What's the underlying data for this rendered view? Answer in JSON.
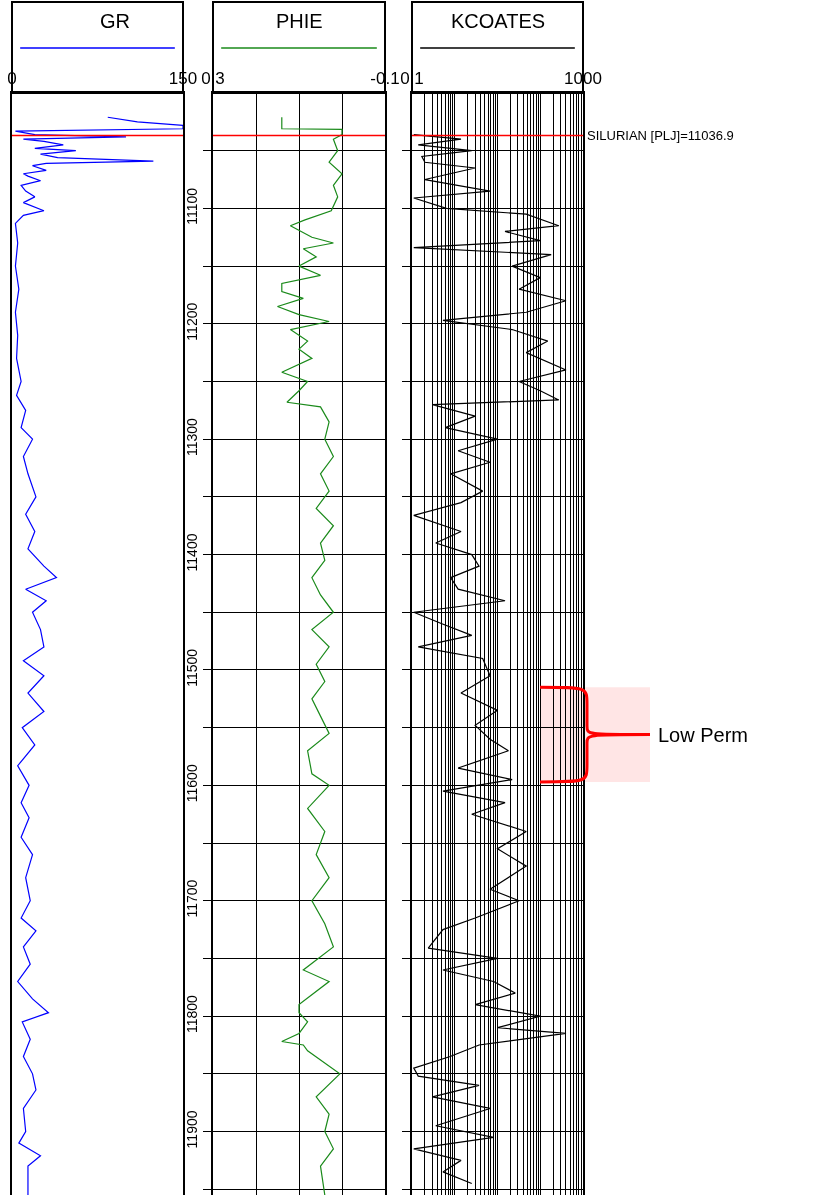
{
  "chart_data": [
    {
      "type": "line",
      "orientation": "horizontal",
      "legend": "top",
      "xlim": [
        0,
        150
      ],
      "xticks": [
        0,
        150
      ],
      "ylim": [
        11955,
        11000
      ],
      "tick_labels": "x",
      "series": [
        {
          "name": "GR",
          "color": "#0000ff",
          "x": [
            11021,
            11025,
            11028,
            11031,
            11033,
            11036,
            11038,
            11040,
            11042,
            11045,
            11048,
            11050,
            11053,
            11056,
            11059,
            11061,
            11063,
            11067,
            11070,
            11072,
            11076,
            11080,
            11085,
            11090,
            11095,
            11102,
            11106,
            11113,
            11130,
            11150,
            11170,
            11190,
            11210,
            11230,
            11250,
            11262,
            11275,
            11290,
            11300,
            11315,
            11330,
            11350,
            11365,
            11380,
            11395,
            11410,
            11420,
            11430,
            11440,
            11450,
            11465,
            11480,
            11492,
            11505,
            11520,
            11536,
            11550,
            11565,
            11583,
            11600,
            11615,
            11628,
            11645,
            11660,
            11680,
            11700,
            11715,
            11726,
            11740,
            11755,
            11770,
            11785,
            11797,
            11805,
            11820,
            11835,
            11850,
            11864,
            11880,
            11900,
            11910,
            11921,
            11930,
            11955
          ],
          "values": [
            84,
            110,
            150,
            150,
            3,
            20,
            100,
            10,
            28,
            45,
            20,
            56,
            25,
            40,
            124,
            30,
            18,
            30,
            10,
            14,
            25,
            8,
            12,
            20,
            10,
            28,
            10,
            3,
            5,
            3,
            6,
            3,
            5,
            4,
            8,
            4,
            12,
            8,
            18,
            10,
            14,
            21,
            12,
            20,
            14,
            28,
            39,
            12,
            30,
            18,
            25,
            28,
            10,
            28,
            14,
            28,
            9,
            20,
            5,
            15,
            8,
            15,
            8,
            18,
            12,
            16,
            8,
            21,
            10,
            16,
            5,
            18,
            32,
            9,
            16,
            10,
            18,
            21,
            10,
            12,
            6,
            25,
            14,
            14
          ]
        }
      ],
      "ref_lines": [
        {
          "axis": "y",
          "value": 11036.9,
          "color": "#ff0000"
        }
      ]
    },
    {
      "type": "line",
      "orientation": "horizontal",
      "legend": "top",
      "grid": true,
      "xlim": [
        0.3,
        -0.1
      ],
      "xticks": [
        0.3,
        {
          "value": 0.2,
          "label": null
        },
        {
          "value": 0.1,
          "label": null
        },
        {
          "value": 0,
          "label": null
        },
        -0.1
      ],
      "ylim": [
        11955,
        11000
      ],
      "yticks": [
        {
          "value": 11050,
          "label": null
        },
        11100,
        {
          "value": 11150,
          "label": null
        },
        11200,
        {
          "value": 11250,
          "label": null
        },
        11300,
        {
          "value": 11350,
          "label": null
        },
        11400,
        {
          "value": 11450,
          "label": null
        },
        11500,
        {
          "value": 11550,
          "label": null
        },
        11600,
        {
          "value": 11650,
          "label": null
        },
        11700,
        {
          "value": 11750,
          "label": null
        },
        11800,
        {
          "value": 11850,
          "label": null
        },
        11900,
        {
          "value": 11950,
          "label": null
        }
      ],
      "series": [
        {
          "name": "PHIE",
          "color": "#1a8a1a",
          "x": [
            11021,
            11031,
            11031.5,
            11036,
            11040,
            11050,
            11060,
            11070,
            11080,
            11090,
            11102,
            11110,
            11115,
            11125,
            11130,
            11135,
            11142,
            11150,
            11158,
            11165,
            11172,
            11178,
            11185,
            11192,
            11198,
            11205,
            11215,
            11222,
            11230,
            11242,
            11250,
            11258,
            11268,
            11272,
            11285,
            11300,
            11315,
            11330,
            11345,
            11360,
            11375,
            11390,
            11405,
            11420,
            11435,
            11450,
            11465,
            11480,
            11495,
            11510,
            11525,
            11540,
            11555,
            11570,
            11590,
            11600,
            11620,
            11640,
            11660,
            11680,
            11700,
            11720,
            11740,
            11760,
            11770,
            11790,
            11797,
            11805,
            11815,
            11822,
            11825,
            11830,
            11850,
            11870,
            11885,
            11900,
            11915,
            11930,
            11955
          ],
          "values": [
            0.14,
            0.14,
            0.0,
            0.0,
            0.02,
            0.01,
            0.03,
            0.0,
            0.02,
            0.01,
            0.025,
            0.086,
            0.12,
            0.07,
            0.02,
            0.09,
            0.06,
            0.1,
            0.05,
            0.14,
            0.14,
            0.09,
            0.15,
            0.1,
            0.03,
            0.12,
            0.08,
            0.1,
            0.07,
            0.14,
            0.08,
            0.1,
            0.128,
            0.05,
            0.03,
            0.04,
            0.02,
            0.05,
            0.03,
            0.06,
            0.02,
            0.05,
            0.04,
            0.07,
            0.05,
            0.02,
            0.07,
            0.03,
            0.06,
            0.04,
            0.07,
            0.05,
            0.03,
            0.08,
            0.07,
            0.03,
            0.08,
            0.04,
            0.06,
            0.03,
            0.07,
            0.04,
            0.02,
            0.09,
            0.03,
            0.1,
            0.1,
            0.08,
            0.1,
            0.14,
            0.09,
            0.08,
            0.005,
            0.06,
            0.03,
            0.04,
            0.02,
            0.05,
            0.04
          ]
        }
      ],
      "ref_lines": [
        {
          "axis": "y",
          "value": 11036.9,
          "color": "#ff0000"
        }
      ]
    },
    {
      "type": "line",
      "orientation": "horizontal",
      "legend": "top",
      "grid": true,
      "log": "x",
      "xlim": [
        0.1,
        1000
      ],
      "tick_labels": "x",
      "ylim": [
        11955,
        11000
      ],
      "xticks": [
        0.1,
        {
          "value": 0.2,
          "label": null
        },
        {
          "value": 0.3,
          "label": null
        },
        {
          "value": 0.4,
          "label": null
        },
        {
          "value": 0.5,
          "label": null
        },
        {
          "value": 0.6,
          "label": null
        },
        {
          "value": 0.7,
          "label": null
        },
        {
          "value": 0.8,
          "label": null
        },
        {
          "value": 0.9,
          "label": null
        },
        {
          "value": 1,
          "label": null
        },
        {
          "value": 2,
          "label": null
        },
        {
          "value": 3,
          "label": null
        },
        {
          "value": 4,
          "label": null
        },
        {
          "value": 5,
          "label": null
        },
        {
          "value": 6,
          "label": null
        },
        {
          "value": 7,
          "label": null
        },
        {
          "value": 8,
          "label": null
        },
        {
          "value": 9,
          "label": null
        },
        {
          "value": 10,
          "label": null
        },
        {
          "value": 20,
          "label": null
        },
        {
          "value": 30,
          "label": null
        },
        {
          "value": 40,
          "label": null
        },
        {
          "value": 50,
          "label": null
        },
        {
          "value": 60,
          "label": null
        },
        {
          "value": 70,
          "label": null
        },
        {
          "value": 80,
          "label": null
        },
        {
          "value": 90,
          "label": null
        },
        {
          "value": 100,
          "label": null
        },
        {
          "value": 200,
          "label": null
        },
        {
          "value": 300,
          "label": null
        },
        {
          "value": 400,
          "label": null
        },
        {
          "value": 500,
          "label": null
        },
        {
          "value": 600,
          "label": null
        },
        {
          "value": 700,
          "label": null
        },
        {
          "value": 800,
          "label": null
        },
        {
          "value": 900,
          "label": null
        },
        1000
      ],
      "yticks": [
        {
          "value": 11050,
          "label": null
        },
        {
          "value": 11100,
          "label": null
        },
        {
          "value": 11150,
          "label": null
        },
        {
          "value": 11200,
          "label": null
        },
        {
          "value": 11250,
          "label": null
        },
        {
          "value": 11300,
          "label": null
        },
        {
          "value": 11350,
          "label": null
        },
        {
          "value": 11400,
          "label": null
        },
        {
          "value": 11450,
          "label": null
        },
        {
          "value": 11500,
          "label": null
        },
        {
          "value": 11550,
          "label": null
        },
        {
          "value": 11600,
          "label": null
        },
        {
          "value": 11650,
          "label": null
        },
        {
          "value": 11700,
          "label": null
        },
        {
          "value": 11750,
          "label": null
        },
        {
          "value": 11800,
          "label": null
        },
        {
          "value": 11850,
          "label": null
        },
        {
          "value": 11900,
          "label": null
        },
        {
          "value": 11950,
          "label": null
        }
      ],
      "series": [
        {
          "name": "KCOATES",
          "color": "#000000",
          "x": [
            11036,
            11040,
            11045,
            11050,
            11055,
            11060,
            11065,
            11075,
            11085,
            11091,
            11100,
            11105,
            11115,
            11120,
            11128,
            11134,
            11140,
            11150,
            11160,
            11170,
            11180,
            11190,
            11197,
            11205,
            11215,
            11225,
            11240,
            11250,
            11258,
            11266,
            11270,
            11280,
            11290,
            11300,
            11310,
            11320,
            11330,
            11345,
            11355,
            11366,
            11380,
            11390,
            11400,
            11410,
            11420,
            11430,
            11440,
            11450,
            11460,
            11470,
            11480,
            11490,
            11505,
            11520,
            11535,
            11548,
            11560,
            11570,
            11585,
            11595,
            11605,
            11615,
            11625,
            11640,
            11655,
            11670,
            11690,
            11700,
            11715,
            11725,
            11741,
            11750,
            11760,
            11770,
            11780,
            11790,
            11800,
            11810,
            11815,
            11825,
            11835,
            11845,
            11852,
            11860,
            11870,
            11880,
            11895,
            11905,
            11915,
            11925,
            11935,
            11945
          ],
          "values": [
            0.11,
            1.4,
            0.14,
            2.5,
            0.17,
            0.2,
            3,
            0.2,
            6.7,
            0.11,
            0.64,
            47,
            270,
            15,
            100,
            0.11,
            180,
            22,
            100,
            32,
            400,
            47,
            0.53,
            22,
            150,
            47,
            400,
            32,
            100,
            270,
            0.3,
            3,
            0.6,
            10,
            1.2,
            6.7,
            0.8,
            4.5,
            1.4,
            0.11,
            1.4,
            0.36,
            2.5,
            3.7,
            0.8,
            1.2,
            15,
            0.11,
            0.5,
            2.5,
            0.14,
            4.5,
            6.7,
            1.4,
            10,
            3,
            6.7,
            18,
            1.2,
            22,
            0.53,
            15,
            2.5,
            47,
            10,
            47,
            6.7,
            32,
            3,
            0.53,
            0.24,
            10,
            0.53,
            8.1,
            26,
            3,
            100,
            10,
            400,
            3.7,
            0.78,
            0.11,
            0.14,
            3.7,
            0.3,
            6.7,
            0.36,
            8.1,
            0.11,
            1.4,
            0.53,
            2.5
          ]
        }
      ],
      "ref_lines": [
        {
          "axis": "y",
          "value": 11036.9,
          "label": "SILURIAN [PLJ]=11036.9",
          "color": "#ff0000"
        }
      ],
      "bands": [
        {
          "axis": "y",
          "from": 11515,
          "to": 11597,
          "label": "Low Perm",
          "color": "#ff0000"
        }
      ]
    }
  ]
}
